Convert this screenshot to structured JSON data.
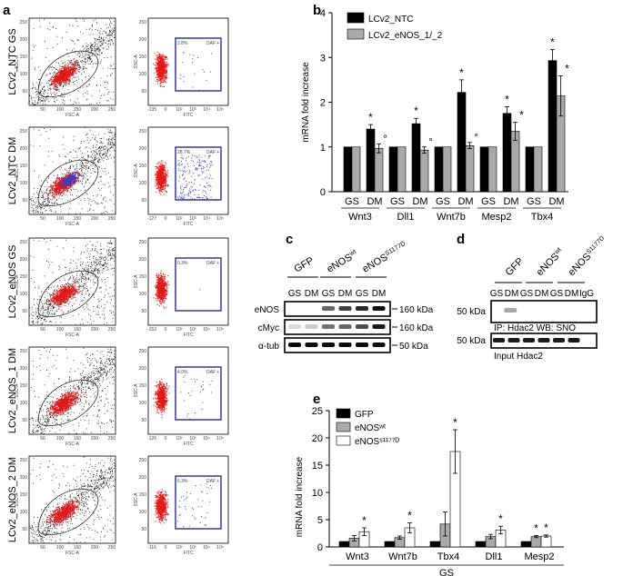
{
  "panel_labels": {
    "a": "a",
    "b": "b",
    "c": "c",
    "d": "d",
    "e": "e"
  },
  "facs": {
    "rows": [
      {
        "label": "LCv2_NTC GS",
        "fscx_ticks": [
          "50",
          "100",
          "150",
          "200",
          "250"
        ],
        "ssc_ticks": [
          "50",
          "100",
          "150",
          "200",
          "250"
        ],
        "gate_p1": "P1",
        "daf_pct": "2.8%",
        "daf_label": "DAF +",
        "fitc_ticks": [
          "-135",
          "0",
          "10²",
          "10³",
          "10⁴",
          "10⁵"
        ]
      },
      {
        "label": "LCv2_NTC DM",
        "fscx_ticks": [
          "50",
          "100",
          "150",
          "200",
          "250"
        ],
        "ssc_ticks": [
          "50",
          "100",
          "150",
          "200",
          "250"
        ],
        "gate_p1": "P1",
        "daf_pct": "28.7%",
        "daf_label": "DAF +",
        "fitc_ticks": [
          "-127",
          "0",
          "10²",
          "10³",
          "10⁴",
          "10⁵"
        ]
      },
      {
        "label": "LCv2_eNOS GS",
        "fscx_ticks": [
          "50",
          "100",
          "150",
          "200",
          "250"
        ],
        "ssc_ticks": [
          "50",
          "100",
          "150",
          "200",
          "250"
        ],
        "gate_p1": "P1",
        "daf_pct": "0.3%",
        "daf_label": "DAF +",
        "fitc_ticks": [
          "-153",
          "0",
          "10²",
          "10³",
          "10⁴",
          "10⁵"
        ]
      },
      {
        "label": "LCv2_eNOS_1 DM",
        "fscx_ticks": [
          "50",
          "100",
          "150",
          "200",
          "250"
        ],
        "ssc_ticks": [
          "50",
          "100",
          "150",
          "200",
          "250"
        ],
        "gate_p1": "P1",
        "daf_pct": "4.0%",
        "daf_label": "DAF +",
        "fitc_ticks": [
          "-126",
          "0",
          "10²",
          "10³",
          "10⁴",
          "10⁵"
        ]
      },
      {
        "label": "LCv2_eNOS_2 DM",
        "fscx_ticks": [
          "50",
          "100",
          "150",
          "200",
          "250"
        ],
        "ssc_ticks": [
          "50",
          "100",
          "150",
          "200",
          "250"
        ],
        "gate_p1": "P1",
        "daf_pct": "6.3%",
        "daf_label": "DAF +",
        "fitc_ticks": [
          "-116",
          "0",
          "10²",
          "10³",
          "10⁴",
          "10⁵"
        ]
      }
    ],
    "fsc_label": "FSC-A",
    "ssc_label": "SSC-A",
    "fitc_label": "FITC"
  },
  "chart_data": [
    {
      "panel": "b",
      "type": "bar",
      "ylabel": "mRNA fold increase",
      "ylim": [
        0,
        4
      ],
      "yticks": [
        "0",
        "1",
        "2",
        "3",
        "4"
      ],
      "groups": [
        "Wnt3",
        "Dll1",
        "Wnt7b",
        "Mesp2",
        "Tbx4"
      ],
      "conditions": [
        "GS",
        "DM"
      ],
      "series": [
        {
          "name": "LCv2_NTC",
          "color": "#000000",
          "values": [
            1,
            1.4,
            1,
            1.52,
            1,
            2.22,
            1,
            1.75,
            1,
            2.93
          ],
          "errors": [
            0,
            0.1,
            0,
            0.12,
            0,
            0.28,
            0,
            0.15,
            0,
            0.25
          ]
        },
        {
          "name": "LCv2_eNOS_1/_2",
          "color": "#aaaaaa",
          "values": [
            1,
            0.97,
            1,
            0.93,
            1,
            1.03,
            1,
            1.35,
            1,
            2.14
          ],
          "errors": [
            0,
            0.1,
            0,
            0.07,
            0,
            0.07,
            0,
            0.2,
            0,
            0.45
          ]
        }
      ],
      "annotations": [
        "*",
        "°"
      ]
    },
    {
      "panel": "e",
      "type": "bar",
      "ylabel": "mRNA fold increase",
      "xlabel": "GS",
      "ylim": [
        0,
        25
      ],
      "yticks": [
        "0",
        "5",
        "10",
        "15",
        "20",
        "25"
      ],
      "categories": [
        "Wnt3",
        "Wnt7b",
        "Tbx4",
        "Dll1",
        "Mesp2"
      ],
      "series": [
        {
          "name": "GFP",
          "color": "#000000",
          "values": [
            1,
            1,
            1,
            1,
            1
          ],
          "errors": [
            0,
            0,
            0,
            0,
            0
          ]
        },
        {
          "name": "eNOSʷᵗ",
          "color": "#aaaaaa",
          "values": [
            1.6,
            1.7,
            4.2,
            1.9,
            1.9
          ],
          "errors": [
            0.5,
            0.3,
            2.2,
            0.4,
            0.2
          ]
        },
        {
          "name": "eNOSˢ¹¹⁷⁷ᴰ",
          "color": "#ffffff",
          "values": [
            2.8,
            3.5,
            17.5,
            3.1,
            2.0
          ],
          "errors": [
            0.7,
            0.9,
            4.0,
            0.7,
            0.2
          ]
        }
      ],
      "annotation": "*"
    }
  ],
  "blot_c": {
    "groups": [
      "GFP",
      "eNOSwt",
      "eNOSS1177D"
    ],
    "group_main": [
      "GFP",
      "eNOS",
      "eNOS"
    ],
    "group_sup": [
      "",
      "wt",
      "S1177D"
    ],
    "lanes": [
      "GS",
      "DM",
      "GS",
      "DM",
      "GS",
      "DM"
    ],
    "rows": [
      "eNOS",
      "cMyc",
      "α-tub"
    ],
    "kda": [
      "160 kDa",
      "160 kDa",
      "50 kDa"
    ]
  },
  "blot_d": {
    "group_main": [
      "GFP",
      "eNOS",
      "eNOS"
    ],
    "group_sup": [
      "",
      "wt",
      "S1177D"
    ],
    "lanes": [
      "GS",
      "DM",
      "GS",
      "DM",
      "GS",
      "DM",
      "IgG"
    ],
    "kda_top": "50 kDa",
    "kda_bottom": "50 kDa",
    "caption_top": "IP: Hdac2 WB: SNO",
    "caption_bottom": "Input Hdac2"
  }
}
